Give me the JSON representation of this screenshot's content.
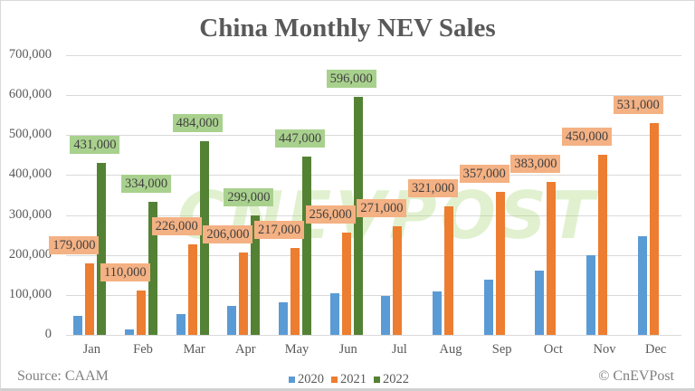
{
  "chart_data": {
    "type": "bar",
    "title": "China Monthly NEV Sales",
    "xlabel": "",
    "ylabel": "",
    "ylim": [
      0,
      700000
    ],
    "yticks": [
      "0",
      "100,000",
      "200,000",
      "300,000",
      "400,000",
      "500,000",
      "600,000",
      "700,000"
    ],
    "grid": true,
    "legend_position": "bottom",
    "categories": [
      "Jan",
      "Feb",
      "Mar",
      "Apr",
      "May",
      "Jun",
      "Jul",
      "Aug",
      "Sep",
      "Oct",
      "Nov",
      "Dec"
    ],
    "series": [
      {
        "name": "2020",
        "color": "#5b9bd5",
        "values": [
          48000,
          13000,
          53000,
          73000,
          82000,
          104000,
          98000,
          109000,
          138000,
          160000,
          200000,
          248000
        ],
        "labeled": false
      },
      {
        "name": "2021",
        "color": "#ed7d31",
        "values": [
          179000,
          110000,
          226000,
          206000,
          217000,
          256000,
          271000,
          321000,
          357000,
          383000,
          450000,
          531000
        ],
        "labeled": true
      },
      {
        "name": "2022",
        "color": "#548235",
        "values": [
          431000,
          334000,
          484000,
          299000,
          447000,
          596000,
          null,
          null,
          null,
          null,
          null,
          null
        ],
        "labeled": true
      }
    ],
    "data_labels": {
      "2021": [
        "179,000",
        "110,000",
        "226,000",
        "206,000",
        "217,000",
        "256,000",
        "271,000",
        "321,000",
        "357,000",
        "383,000",
        "450,000",
        "531,000"
      ],
      "2022": [
        "431,000",
        "334,000",
        "484,000",
        "299,000",
        "447,000",
        "596,000"
      ]
    },
    "annotations": [
      "Source: CAAM",
      "© CnEVPost"
    ]
  },
  "footer": {
    "source": "Source: CAAM",
    "credit": "© CnEVPost"
  },
  "watermark": "CNEVPOST"
}
